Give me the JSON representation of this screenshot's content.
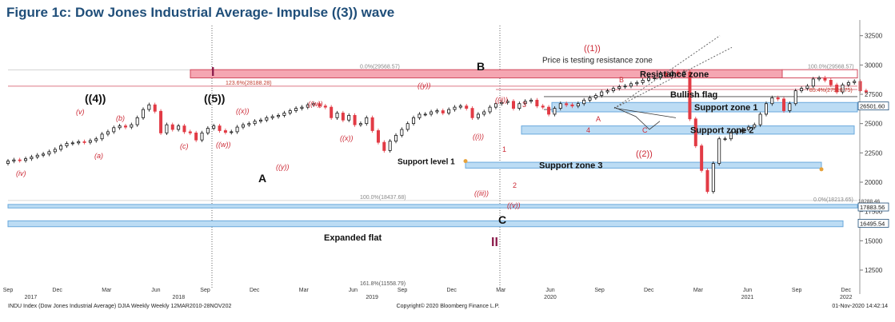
{
  "title": "Figure 1c: Dow Jones Industrial Average- Impulse ((3)) wave",
  "colors": {
    "up": "#111111",
    "down": "#e23b45",
    "resistance": "#f5a6b2",
    "support": "#bcdcf4",
    "supportEdge": "#6aa9dc",
    "wave": "#cc2a36",
    "roman": "#8b1a4a"
  },
  "chart_data": {
    "type": "candlestick",
    "ylim": [
      11000,
      33500
    ],
    "y_ticks": [
      12500,
      15000,
      17500,
      20000,
      22500,
      25000,
      27500,
      30000,
      32500
    ],
    "x_ticks": [
      {
        "label": "Sep",
        "year": "2017",
        "t": 0
      },
      {
        "label": "Dec",
        "t": 13
      },
      {
        "label": "Mar",
        "year": "2018",
        "t": 26
      },
      {
        "label": "Jun",
        "t": 39
      },
      {
        "label": "Sep",
        "year": "",
        "t": 52
      },
      {
        "label": "Dec",
        "t": 65
      },
      {
        "label": "Mar",
        "t": 78
      },
      {
        "label": "Jun",
        "year": "2019",
        "t": 91
      },
      {
        "label": "Sep",
        "t": 104
      },
      {
        "label": "Dec",
        "t": 117
      },
      {
        "label": "Mar",
        "t": 130
      },
      {
        "label": "Jun",
        "year": "2020",
        "t": 143
      },
      {
        "label": "Sep",
        "t": 156
      },
      {
        "label": "Dec",
        "t": 169
      },
      {
        "label": "Mar",
        "t": 182
      },
      {
        "label": "Jun",
        "year": "2021",
        "t": 195
      },
      {
        "label": "Sep",
        "t": 208
      },
      {
        "label": "Dec",
        "year": "2022",
        "t": 221
      }
    ],
    "year_labels": [
      {
        "label": "2017",
        "t": 6
      },
      {
        "label": "2018",
        "t": 45
      },
      {
        "label": "2019",
        "t": 96
      },
      {
        "label": "2020",
        "t": 143
      },
      {
        "label": "2021",
        "t": 195
      },
      {
        "label": "2022",
        "t": 221
      }
    ],
    "closes": [
      21800,
      21900,
      21850,
      22000,
      22150,
      22300,
      22400,
      22600,
      22800,
      23100,
      23300,
      23350,
      23450,
      23400,
      23550,
      23700,
      24100,
      24300,
      24650,
      24800,
      24700,
      24900,
      25500,
      26200,
      26600,
      26050,
      24200,
      24900,
      24500,
      24800,
      24300,
      24200,
      23600,
      24200,
      24600,
      24800,
      24400,
      24250,
      24300,
      24700,
      24900,
      25000,
      25200,
      25300,
      25500,
      25600,
      25700,
      25900,
      26100,
      26300,
      26400,
      26600,
      26700,
      26500,
      26400,
      25500,
      25900,
      25300,
      25700,
      24900,
      25000,
      25500,
      24400,
      23400,
      22700,
      23500,
      24000,
      24500,
      25000,
      25500,
      25800,
      25800,
      26000,
      26100,
      25900,
      26200,
      26400,
      26500,
      26300,
      25500,
      25800,
      26000,
      26400,
      26700,
      26800,
      26900,
      26300,
      26700,
      26900,
      27000,
      26500,
      26400,
      25800,
      26300,
      26700,
      26600,
      26500,
      26700,
      27000,
      27200,
      27400,
      27700,
      27800,
      28000,
      28150,
      28200,
      28400,
      28500,
      28700,
      28900,
      28900,
      29300,
      29100,
      29400,
      29200,
      29400,
      25400,
      23100,
      21000,
      19200,
      21600,
      23700,
      23700,
      24200,
      24300,
      24500,
      24700,
      24900,
      25800,
      26700,
      27200,
      27100,
      26100,
      26700,
      27800,
      28000,
      28200,
      28800,
      28900,
      28700,
      28300,
      27700,
      28300,
      28500,
      28600,
      27800,
      27700
    ],
    "closes_start_t": 0,
    "levels": {
      "ret_1236": 28188.28,
      "ret_854": 27910.75,
      "ret_1000_top": 29568.57,
      "ret_1000_low": 18437.68,
      "ret_00_low": 18213.65,
      "ret_1618": 11558.79,
      "price_26501": 26501.6,
      "price_17883": 17883.56,
      "price_16495": 16495.54,
      "support_level_1": 21700
    },
    "zones": {
      "resistance": {
        "label": "Resistance zone",
        "y1": 28900,
        "y2": 29600
      },
      "support1": {
        "label": "Support zone 1",
        "y1": 26000,
        "y2": 26800
      },
      "support2": {
        "label": "Support zone 2",
        "y1": 24100,
        "y2": 24800
      },
      "support3": {
        "label": "Support zone 3",
        "y1": 21200,
        "y2": 21700
      },
      "band1": {
        "y1": 17800,
        "y2": 18100
      },
      "band2": {
        "y1": 16200,
        "y2": 16700
      }
    }
  },
  "labels": {
    "fib_top_left": "0.0%(29568.57)",
    "fib_top_right": "100.0%(29568.57)",
    "fib_1236": "123.6%(28188.28)",
    "fib_854": "85.4%(27910.75)",
    "fib_low_left": "100.0%(18437.68)",
    "fib_low_right": "0.0%(18213.65)",
    "fib_1618": "161.8%(11558.79)",
    "price_26501": "26501.60",
    "price_17883": "17883.56",
    "price_18288": "18288.46",
    "price_16495": "16495.54",
    "resistance_zone": "Resistance zone",
    "bullish_flag": "Bullish flag",
    "support_zone_1": "Support zone 1",
    "support_zone_2": "Support zone 2",
    "support_zone_3": "Support zone 3",
    "support_level_1": "Support level 1",
    "price_testing": "Price is testing resistance zone",
    "expanded_flat": "Expanded flat",
    "wave_4_big": "((4))",
    "wave_5_big": "((5))",
    "wave_A": "A",
    "wave_B": "B",
    "wave_C": "C",
    "roman_I": "I",
    "roman_II": "II",
    "wave_1_top": "((1))",
    "wave_2_paren": "((2))",
    "w_iv": "(iv)",
    "w_v": "(v)",
    "w_a": "(a)",
    "w_b": "(b)",
    "w_c": "(c)",
    "w_w": "((w))",
    "w_x": "((x))",
    "w_y": "((y))",
    "w_w2": "((w))",
    "w_x2": "((x))",
    "w_y2": "((y))",
    "w_i": "((i))",
    "w_ii": "((ii))",
    "w_iii": "((iii))",
    "w_v2": "((v))",
    "w_1": "1",
    "w_2": "2",
    "w_3": "3",
    "w_4": "4",
    "w_a_small": "A",
    "w_b_small": "B",
    "w_c_small": "C",
    "footer_left": "INDU Index (Dow Jones Industrial Average) DJIA Weekly  Weekly 12MAR2010-28NOV202",
    "footer_center": "Copyright© 2020 Bloomberg Finance L.P.",
    "footer_right": "01-Nov-2020 14:42:14"
  }
}
